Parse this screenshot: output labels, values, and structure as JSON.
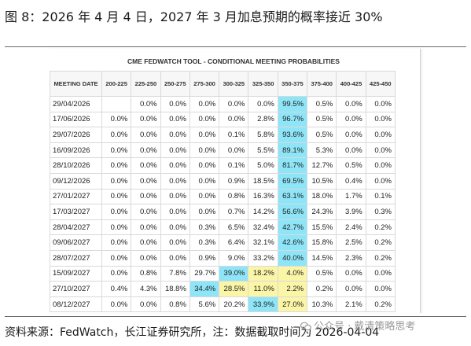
{
  "figure_title": "图 8：2026 年 4 月 4 日，2027 年 3 月加息预期的概率接近 30%",
  "panel_title": "CME FEDWATCH TOOL - CONDITIONAL MEETING PROBABILITIES",
  "columns": [
    "MEETING DATE",
    "200-225",
    "225-250",
    "250-275",
    "275-300",
    "300-325",
    "325-350",
    "350-375",
    "375-400",
    "400-425",
    "425-450"
  ],
  "rows": [
    {
      "date": "29/04/2026",
      "cells": [
        "",
        "0.0%",
        "0.0%",
        "0.0%",
        "0.0%",
        "0.0%",
        "99.5%",
        "0.5%",
        "0.0%",
        "0.0%"
      ],
      "hl": [
        0,
        0,
        0,
        0,
        0,
        0,
        1,
        0,
        0,
        0
      ]
    },
    {
      "date": "17/06/2026",
      "cells": [
        "0.0%",
        "0.0%",
        "0.0%",
        "0.0%",
        "0.0%",
        "2.8%",
        "96.7%",
        "0.5%",
        "0.0%",
        "0.0%"
      ],
      "hl": [
        0,
        0,
        0,
        0,
        0,
        0,
        1,
        0,
        0,
        0
      ]
    },
    {
      "date": "29/07/2026",
      "cells": [
        "0.0%",
        "0.0%",
        "0.0%",
        "0.0%",
        "0.1%",
        "5.8%",
        "93.6%",
        "0.5%",
        "0.0%",
        "0.0%"
      ],
      "hl": [
        0,
        0,
        0,
        0,
        0,
        0,
        1,
        0,
        0,
        0
      ]
    },
    {
      "date": "16/09/2026",
      "cells": [
        "0.0%",
        "0.0%",
        "0.0%",
        "0.0%",
        "0.0%",
        "5.5%",
        "89.1%",
        "5.3%",
        "0.0%",
        "0.0%"
      ],
      "hl": [
        0,
        0,
        0,
        0,
        0,
        0,
        1,
        0,
        0,
        0
      ]
    },
    {
      "date": "28/10/2026",
      "cells": [
        "0.0%",
        "0.0%",
        "0.0%",
        "0.0%",
        "0.1%",
        "5.0%",
        "81.7%",
        "12.7%",
        "0.5%",
        "0.0%"
      ],
      "hl": [
        0,
        0,
        0,
        0,
        0,
        0,
        1,
        0,
        0,
        0
      ]
    },
    {
      "date": "09/12/2026",
      "cells": [
        "0.0%",
        "0.0%",
        "0.0%",
        "0.0%",
        "0.9%",
        "18.5%",
        "69.5%",
        "10.5%",
        "0.4%",
        "0.0%"
      ],
      "hl": [
        0,
        0,
        0,
        0,
        0,
        0,
        1,
        0,
        0,
        0
      ]
    },
    {
      "date": "27/01/2027",
      "cells": [
        "0.0%",
        "0.0%",
        "0.0%",
        "0.0%",
        "0.8%",
        "16.3%",
        "63.1%",
        "18.0%",
        "1.7%",
        "0.1%"
      ],
      "hl": [
        0,
        0,
        0,
        0,
        0,
        0,
        1,
        0,
        0,
        0
      ]
    },
    {
      "date": "17/03/2027",
      "cells": [
        "0.0%",
        "0.0%",
        "0.0%",
        "0.0%",
        "0.7%",
        "14.2%",
        "56.6%",
        "24.3%",
        "3.9%",
        "0.3%"
      ],
      "hl": [
        0,
        0,
        0,
        0,
        0,
        0,
        1,
        0,
        0,
        0
      ]
    },
    {
      "date": "28/04/2027",
      "cells": [
        "0.0%",
        "0.0%",
        "0.0%",
        "0.3%",
        "6.5%",
        "32.4%",
        "42.7%",
        "15.5%",
        "2.4%",
        "0.2%"
      ],
      "hl": [
        0,
        0,
        0,
        0,
        0,
        0,
        1,
        0,
        0,
        0
      ]
    },
    {
      "date": "09/06/2027",
      "cells": [
        "0.0%",
        "0.0%",
        "0.0%",
        "0.3%",
        "6.4%",
        "32.1%",
        "42.6%",
        "15.8%",
        "2.5%",
        "0.2%"
      ],
      "hl": [
        0,
        0,
        0,
        0,
        0,
        0,
        1,
        0,
        0,
        0
      ]
    },
    {
      "date": "28/07/2027",
      "cells": [
        "0.0%",
        "0.0%",
        "0.0%",
        "0.9%",
        "9.0%",
        "33.2%",
        "40.0%",
        "14.5%",
        "2.3%",
        "0.2%"
      ],
      "hl": [
        0,
        0,
        0,
        0,
        0,
        0,
        1,
        0,
        0,
        0
      ]
    },
    {
      "date": "15/09/2027",
      "cells": [
        "0.0%",
        "0.8%",
        "7.8%",
        "29.7%",
        "39.0%",
        "18.2%",
        "4.0%",
        "0.5%",
        "0.0%",
        "0.0%"
      ],
      "hl": [
        0,
        0,
        0,
        0,
        1,
        2,
        2,
        0,
        0,
        0
      ]
    },
    {
      "date": "27/10/2027",
      "cells": [
        "0.4%",
        "4.3%",
        "18.8%",
        "34.4%",
        "28.5%",
        "11.0%",
        "2.2%",
        "0.2%",
        "0.0%",
        "0.0%"
      ],
      "hl": [
        0,
        0,
        0,
        1,
        2,
        2,
        2,
        0,
        0,
        0
      ]
    },
    {
      "date": "08/12/2027",
      "cells": [
        "0.0%",
        "0.0%",
        "0.8%",
        "5.6%",
        "20.2%",
        "33.9%",
        "27.0%",
        "10.3%",
        "2.1%",
        "0.2%"
      ],
      "hl": [
        0,
        0,
        0,
        0,
        0,
        1,
        2,
        0,
        0,
        0
      ]
    }
  ],
  "highlight_colors": {
    "cyan": "#8ee5f8",
    "yellow": "#fbf5a7"
  },
  "source": "资料来源：FedWatch，长江证券研究所，注：数据截取时间为 2026-04-04",
  "watermark": {
    "icon": "wechat-icon",
    "text": "公众号 · 戴清策略思考"
  }
}
